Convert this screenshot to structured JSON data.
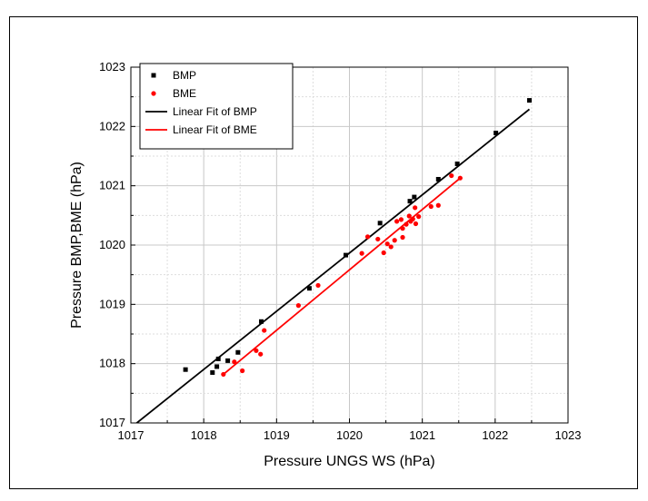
{
  "chart_data": {
    "type": "scatter",
    "title": "",
    "xlabel": "Pressure UNGS WS (hPa)",
    "ylabel": "Pressure BMP,BME (hPa)",
    "xlim": [
      1017,
      1023
    ],
    "ylim": [
      1017,
      1023
    ],
    "xticks": [
      "1017",
      "1018",
      "1019",
      "1020",
      "1021",
      "1022",
      "1023"
    ],
    "yticks": [
      "1017",
      "1018",
      "1019",
      "1020",
      "1021",
      "1022",
      "1023"
    ],
    "grid": true,
    "legend_position": "top-left",
    "series": [
      {
        "name": "BMP",
        "kind": "scatter",
        "marker": "square",
        "color": "#000000",
        "points": [
          [
            1017.75,
            1017.9
          ],
          [
            1018.12,
            1017.85
          ],
          [
            1018.18,
            1017.95
          ],
          [
            1018.2,
            1018.08
          ],
          [
            1018.33,
            1018.05
          ],
          [
            1018.47,
            1018.19
          ],
          [
            1018.79,
            1018.71
          ],
          [
            1019.45,
            1019.27
          ],
          [
            1019.95,
            1019.83
          ],
          [
            1020.42,
            1020.37
          ],
          [
            1020.83,
            1020.74
          ],
          [
            1020.89,
            1020.81
          ],
          [
            1021.22,
            1021.11
          ],
          [
            1021.48,
            1021.37
          ],
          [
            1022.01,
            1021.89
          ],
          [
            1022.47,
            1022.44
          ]
        ]
      },
      {
        "name": "BME",
        "kind": "scatter",
        "marker": "circle",
        "color": "#ff0000",
        "points": [
          [
            1018.27,
            1017.82
          ],
          [
            1018.42,
            1018.03
          ],
          [
            1018.53,
            1017.88
          ],
          [
            1018.72,
            1018.22
          ],
          [
            1018.78,
            1018.16
          ],
          [
            1018.83,
            1018.56
          ],
          [
            1019.3,
            1018.98
          ],
          [
            1019.57,
            1019.32
          ],
          [
            1020.17,
            1019.86
          ],
          [
            1020.25,
            1020.14
          ],
          [
            1020.39,
            1020.1
          ],
          [
            1020.47,
            1019.87
          ],
          [
            1020.52,
            1020.02
          ],
          [
            1020.57,
            1019.97
          ],
          [
            1020.62,
            1020.08
          ],
          [
            1020.65,
            1020.4
          ],
          [
            1020.71,
            1020.43
          ],
          [
            1020.73,
            1020.28
          ],
          [
            1020.73,
            1020.13
          ],
          [
            1020.78,
            1020.35
          ],
          [
            1020.82,
            1020.49
          ],
          [
            1020.84,
            1020.4
          ],
          [
            1020.87,
            1020.44
          ],
          [
            1020.9,
            1020.63
          ],
          [
            1020.91,
            1020.36
          ],
          [
            1020.95,
            1020.48
          ],
          [
            1021.12,
            1020.65
          ],
          [
            1021.22,
            1020.67
          ],
          [
            1021.4,
            1021.17
          ],
          [
            1021.52,
            1021.13
          ]
        ]
      },
      {
        "name": "Linear Fit of BMP",
        "kind": "line",
        "color": "#000000",
        "x": [
          1017.05,
          1022.47
        ],
        "y": [
          1016.97,
          1022.29
        ]
      },
      {
        "name": "Linear Fit of BME",
        "kind": "line",
        "color": "#ff0000",
        "x": [
          1018.27,
          1021.52
        ],
        "y": [
          1017.82,
          1021.13
        ]
      }
    ]
  }
}
